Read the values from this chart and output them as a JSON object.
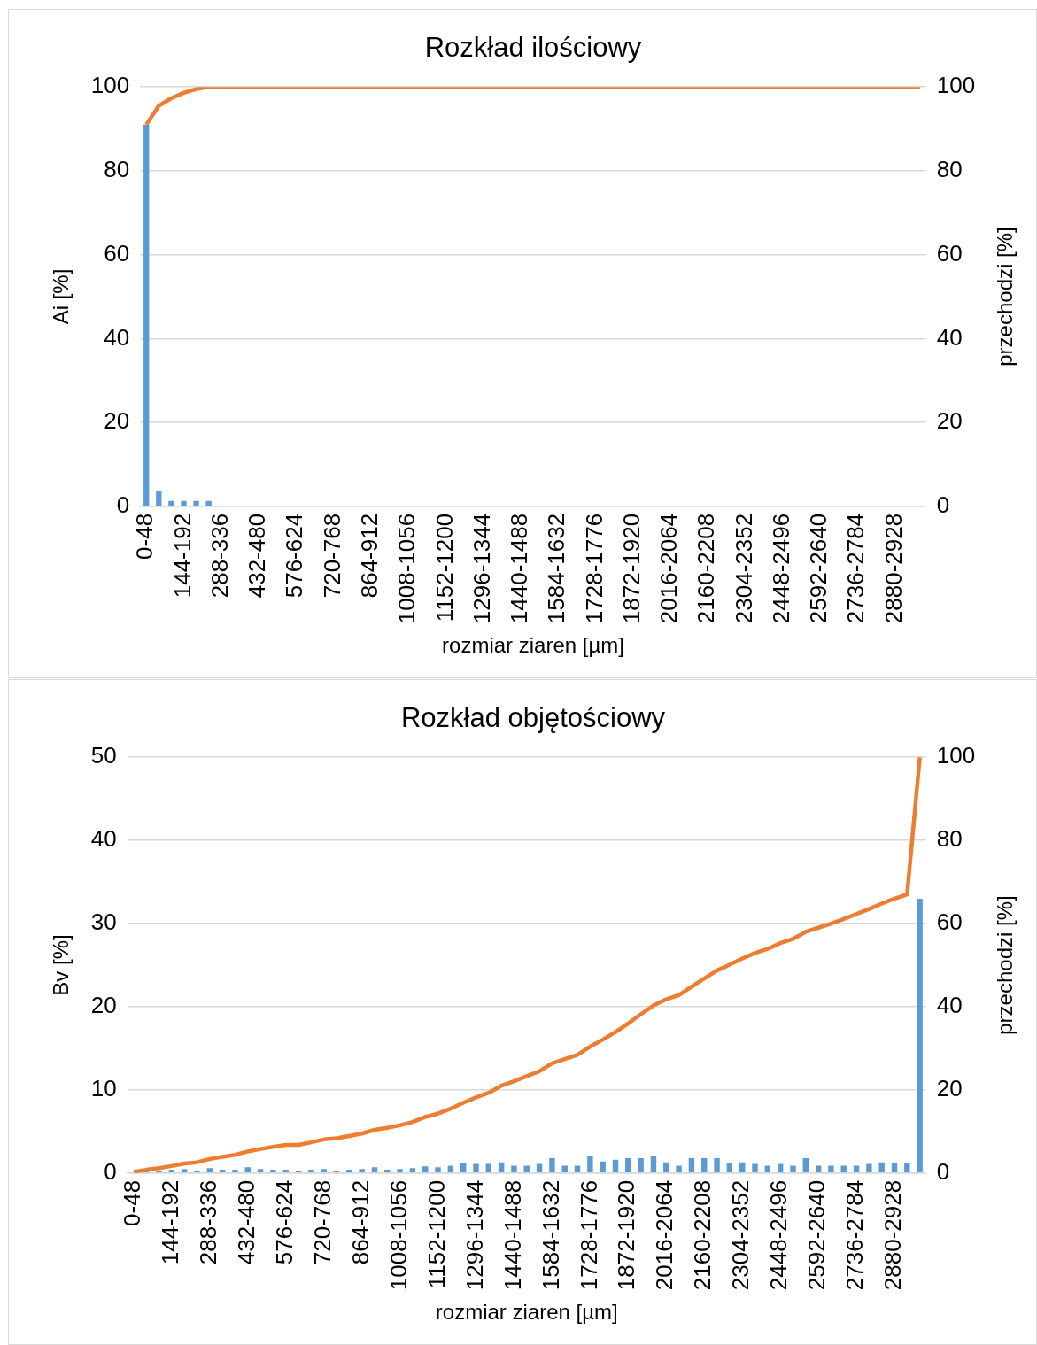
{
  "chart_data": [
    {
      "type": "bar",
      "title": "Rozkład ilościowy",
      "xlabel": "rozmiar ziaren [µm]",
      "ylabel": "Ai [%]",
      "y2label": "przechodzi [%]",
      "categories": [
        "0-48",
        null,
        null,
        "144-192",
        null,
        null,
        "288-336",
        null,
        null,
        "432-480",
        null,
        null,
        "576-624",
        null,
        null,
        "720-768",
        null,
        null,
        "864-912",
        null,
        null,
        "1008-1056",
        null,
        null,
        "1152-1200",
        null,
        null,
        "1296-1344",
        null,
        null,
        "1440-1488",
        null,
        null,
        "1584-1632",
        null,
        null,
        "1728-1776",
        null,
        null,
        "1872-1920",
        null,
        null,
        "2016-2064",
        null,
        null,
        "2160-2208",
        null,
        null,
        "2304-2352",
        null,
        null,
        "2448-2496",
        null,
        null,
        "2592-2640",
        null,
        null,
        "2736-2784",
        null,
        null,
        "2880-2928",
        null,
        null
      ],
      "series": [
        {
          "color": "#5b9bd5",
          "values": [
            91,
            3.7,
            1.3,
            1.3,
            1.3,
            1.3,
            0,
            0,
            0,
            0,
            0,
            0,
            0,
            0,
            0,
            0,
            0,
            0,
            0,
            0,
            0,
            0,
            0,
            0,
            0,
            0,
            0,
            0,
            0,
            0,
            0,
            0,
            0,
            0,
            0,
            0,
            0,
            0,
            0,
            0,
            0,
            0,
            0,
            0,
            0,
            0,
            0,
            0,
            0,
            0,
            0,
            0,
            0,
            0,
            0,
            0,
            0,
            0,
            0,
            0,
            0,
            0,
            0
          ]
        },
        {
          "type": "line",
          "axis": "y2",
          "color": "#ed7d31",
          "values": [
            91,
            95.5,
            97.3,
            98.6,
            99.5,
            100,
            100,
            100,
            100,
            100,
            100,
            100,
            100,
            100,
            100,
            100,
            100,
            100,
            100,
            100,
            100,
            100,
            100,
            100,
            100,
            100,
            100,
            100,
            100,
            100,
            100,
            100,
            100,
            100,
            100,
            100,
            100,
            100,
            100,
            100,
            100,
            100,
            100,
            100,
            100,
            100,
            100,
            100,
            100,
            100,
            100,
            100,
            100,
            100,
            100,
            100,
            100,
            100,
            100,
            100,
            100,
            100,
            100
          ]
        }
      ],
      "ylim": [
        0,
        100
      ],
      "yticks": [
        0,
        20,
        40,
        60,
        80,
        100
      ],
      "y2lim": [
        0,
        100
      ],
      "y2ticks": [
        0,
        20,
        40,
        60,
        80,
        100
      ],
      "grid": "y"
    },
    {
      "type": "bar",
      "title": "Rozkład objętościowy",
      "xlabel": "rozmiar ziaren [µm]",
      "ylabel": "Bv [%]",
      "y2label": "przechodzi [%]",
      "categories": [
        "0-48",
        null,
        null,
        "144-192",
        null,
        null,
        "288-336",
        null,
        null,
        "432-480",
        null,
        null,
        "576-624",
        null,
        null,
        "720-768",
        null,
        null,
        "864-912",
        null,
        null,
        "1008-1056",
        null,
        null,
        "1152-1200",
        null,
        null,
        "1296-1344",
        null,
        null,
        "1440-1488",
        null,
        null,
        "1584-1632",
        null,
        null,
        "1728-1776",
        null,
        null,
        "1872-1920",
        null,
        null,
        "2016-2064",
        null,
        null,
        "2160-2208",
        null,
        null,
        "2304-2352",
        null,
        null,
        "2448-2496",
        null,
        null,
        "2592-2640",
        null,
        null,
        "2736-2784",
        null,
        null,
        "2880-2928",
        null,
        null
      ],
      "series": [
        {
          "color": "#5b9bd5",
          "values": [
            0.1,
            0.2,
            0.3,
            0.4,
            0.5,
            0.2,
            0.6,
            0.4,
            0.4,
            0.7,
            0.5,
            0.4,
            0.4,
            0.2,
            0.4,
            0.5,
            0.2,
            0.4,
            0.5,
            0.7,
            0.4,
            0.5,
            0.6,
            0.8,
            0.7,
            0.9,
            1.2,
            1.1,
            1.1,
            1.3,
            0.9,
            0.9,
            1.1,
            1.8,
            0.9,
            0.9,
            2,
            1.4,
            1.6,
            1.8,
            1.8,
            2,
            1.3,
            0.9,
            1.8,
            1.8,
            1.8,
            1.2,
            1.3,
            1.1,
            0.9,
            1.1,
            0.9,
            1.8,
            0.9,
            0.9,
            0.9,
            0.9,
            1.1,
            1.3,
            1.2,
            1.2,
            33
          ]
        },
        {
          "type": "line",
          "axis": "y2",
          "color": "#ed7d31",
          "values": [
            0.3,
            0.8,
            1.2,
            1.7,
            2.3,
            2.6,
            3.4,
            3.9,
            4.4,
            5.2,
            5.8,
            6.3,
            6.8,
            6.8,
            7.4,
            8.1,
            8.4,
            8.9,
            9.5,
            10.4,
            10.9,
            11.5,
            12.3,
            13.5,
            14.3,
            15.5,
            16.9,
            18.2,
            19.3,
            21,
            22.1,
            23.3,
            24.5,
            26.4,
            27.4,
            28.4,
            30.4,
            32.1,
            33.9,
            36,
            38.2,
            40.3,
            41.8,
            42.8,
            44.8,
            46.8,
            48.7,
            50.1,
            51.6,
            52.9,
            53.9,
            55.3,
            56.3,
            58,
            59,
            60,
            61.1,
            62.3,
            63.5,
            64.8,
            66,
            67,
            100
          ]
        }
      ],
      "ylim": [
        0,
        50
      ],
      "yticks": [
        0,
        10,
        20,
        30,
        40,
        50
      ],
      "y2lim": [
        0,
        100
      ],
      "y2ticks": [
        0,
        20,
        40,
        60,
        80,
        100
      ],
      "grid": "y"
    }
  ]
}
